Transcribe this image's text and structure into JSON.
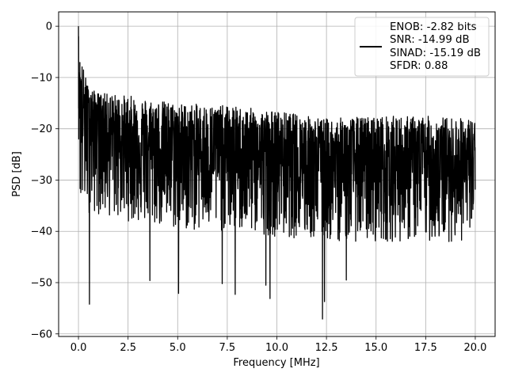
{
  "chart_data": {
    "type": "line",
    "title": "",
    "xlabel": "Frequency [MHz]",
    "ylabel": "PSD [dB]",
    "xlim": [
      -1.0,
      21.0
    ],
    "ylim": [
      -60.5,
      2.8
    ],
    "xticks": [
      0.0,
      2.5,
      5.0,
      7.5,
      10.0,
      12.5,
      15.0,
      17.5,
      20.0
    ],
    "xtick_labels": [
      "0.0",
      "2.5",
      "5.0",
      "7.5",
      "10.0",
      "12.5",
      "15.0",
      "17.5",
      "20.0"
    ],
    "yticks": [
      0,
      -10,
      -20,
      -30,
      -40,
      -50,
      -60
    ],
    "ytick_labels": [
      "0",
      "−10",
      "−20",
      "−30",
      "−40",
      "−50",
      "−60"
    ],
    "grid": true,
    "legend_position": "top-right",
    "series": [
      {
        "color": "#000000",
        "x_range": [
          0.0,
          20.0
        ],
        "approx_upper_envelope": [
          [
            0.0,
            0.0
          ],
          [
            0.05,
            -5
          ],
          [
            0.5,
            -12
          ],
          [
            1.0,
            -13
          ],
          [
            2.5,
            -13.5
          ],
          [
            5.0,
            -15
          ],
          [
            7.5,
            -15.5
          ],
          [
            10.0,
            -16.5
          ],
          [
            12.5,
            -18
          ],
          [
            15.0,
            -17.5
          ],
          [
            17.5,
            -17.5
          ],
          [
            20.0,
            -18
          ]
        ],
        "approx_median_envelope": [
          [
            0.0,
            -15
          ],
          [
            2.5,
            -23
          ],
          [
            5.0,
            -24
          ],
          [
            7.5,
            -25
          ],
          [
            10.0,
            -26
          ],
          [
            12.5,
            -27
          ],
          [
            15.0,
            -27
          ],
          [
            17.5,
            -27
          ],
          [
            20.0,
            -27
          ]
        ],
        "approx_lower_envelope": [
          [
            0.0,
            -36
          ],
          [
            2.5,
            -38
          ],
          [
            5.0,
            -40
          ],
          [
            7.5,
            -40
          ],
          [
            10.0,
            -41
          ],
          [
            12.5,
            -42
          ],
          [
            15.0,
            -42
          ],
          [
            17.5,
            -42
          ],
          [
            20.0,
            -42
          ]
        ],
        "notable_dips": [
          [
            0.55,
            -54.2
          ],
          [
            3.6,
            -49.6
          ],
          [
            5.05,
            -52.1
          ],
          [
            7.25,
            -50.2
          ],
          [
            7.9,
            -52.3
          ],
          [
            9.45,
            -50.5
          ],
          [
            9.65,
            -53.1
          ],
          [
            12.3,
            -57.1
          ],
          [
            12.4,
            -53.7
          ],
          [
            13.5,
            -49.5
          ]
        ]
      }
    ],
    "legend": {
      "lines": [
        "ENOB: -2.82 bits",
        "SNR: -14.99 dB",
        "SINAD: -15.19 dB",
        "SFDR: 0.88"
      ]
    }
  }
}
